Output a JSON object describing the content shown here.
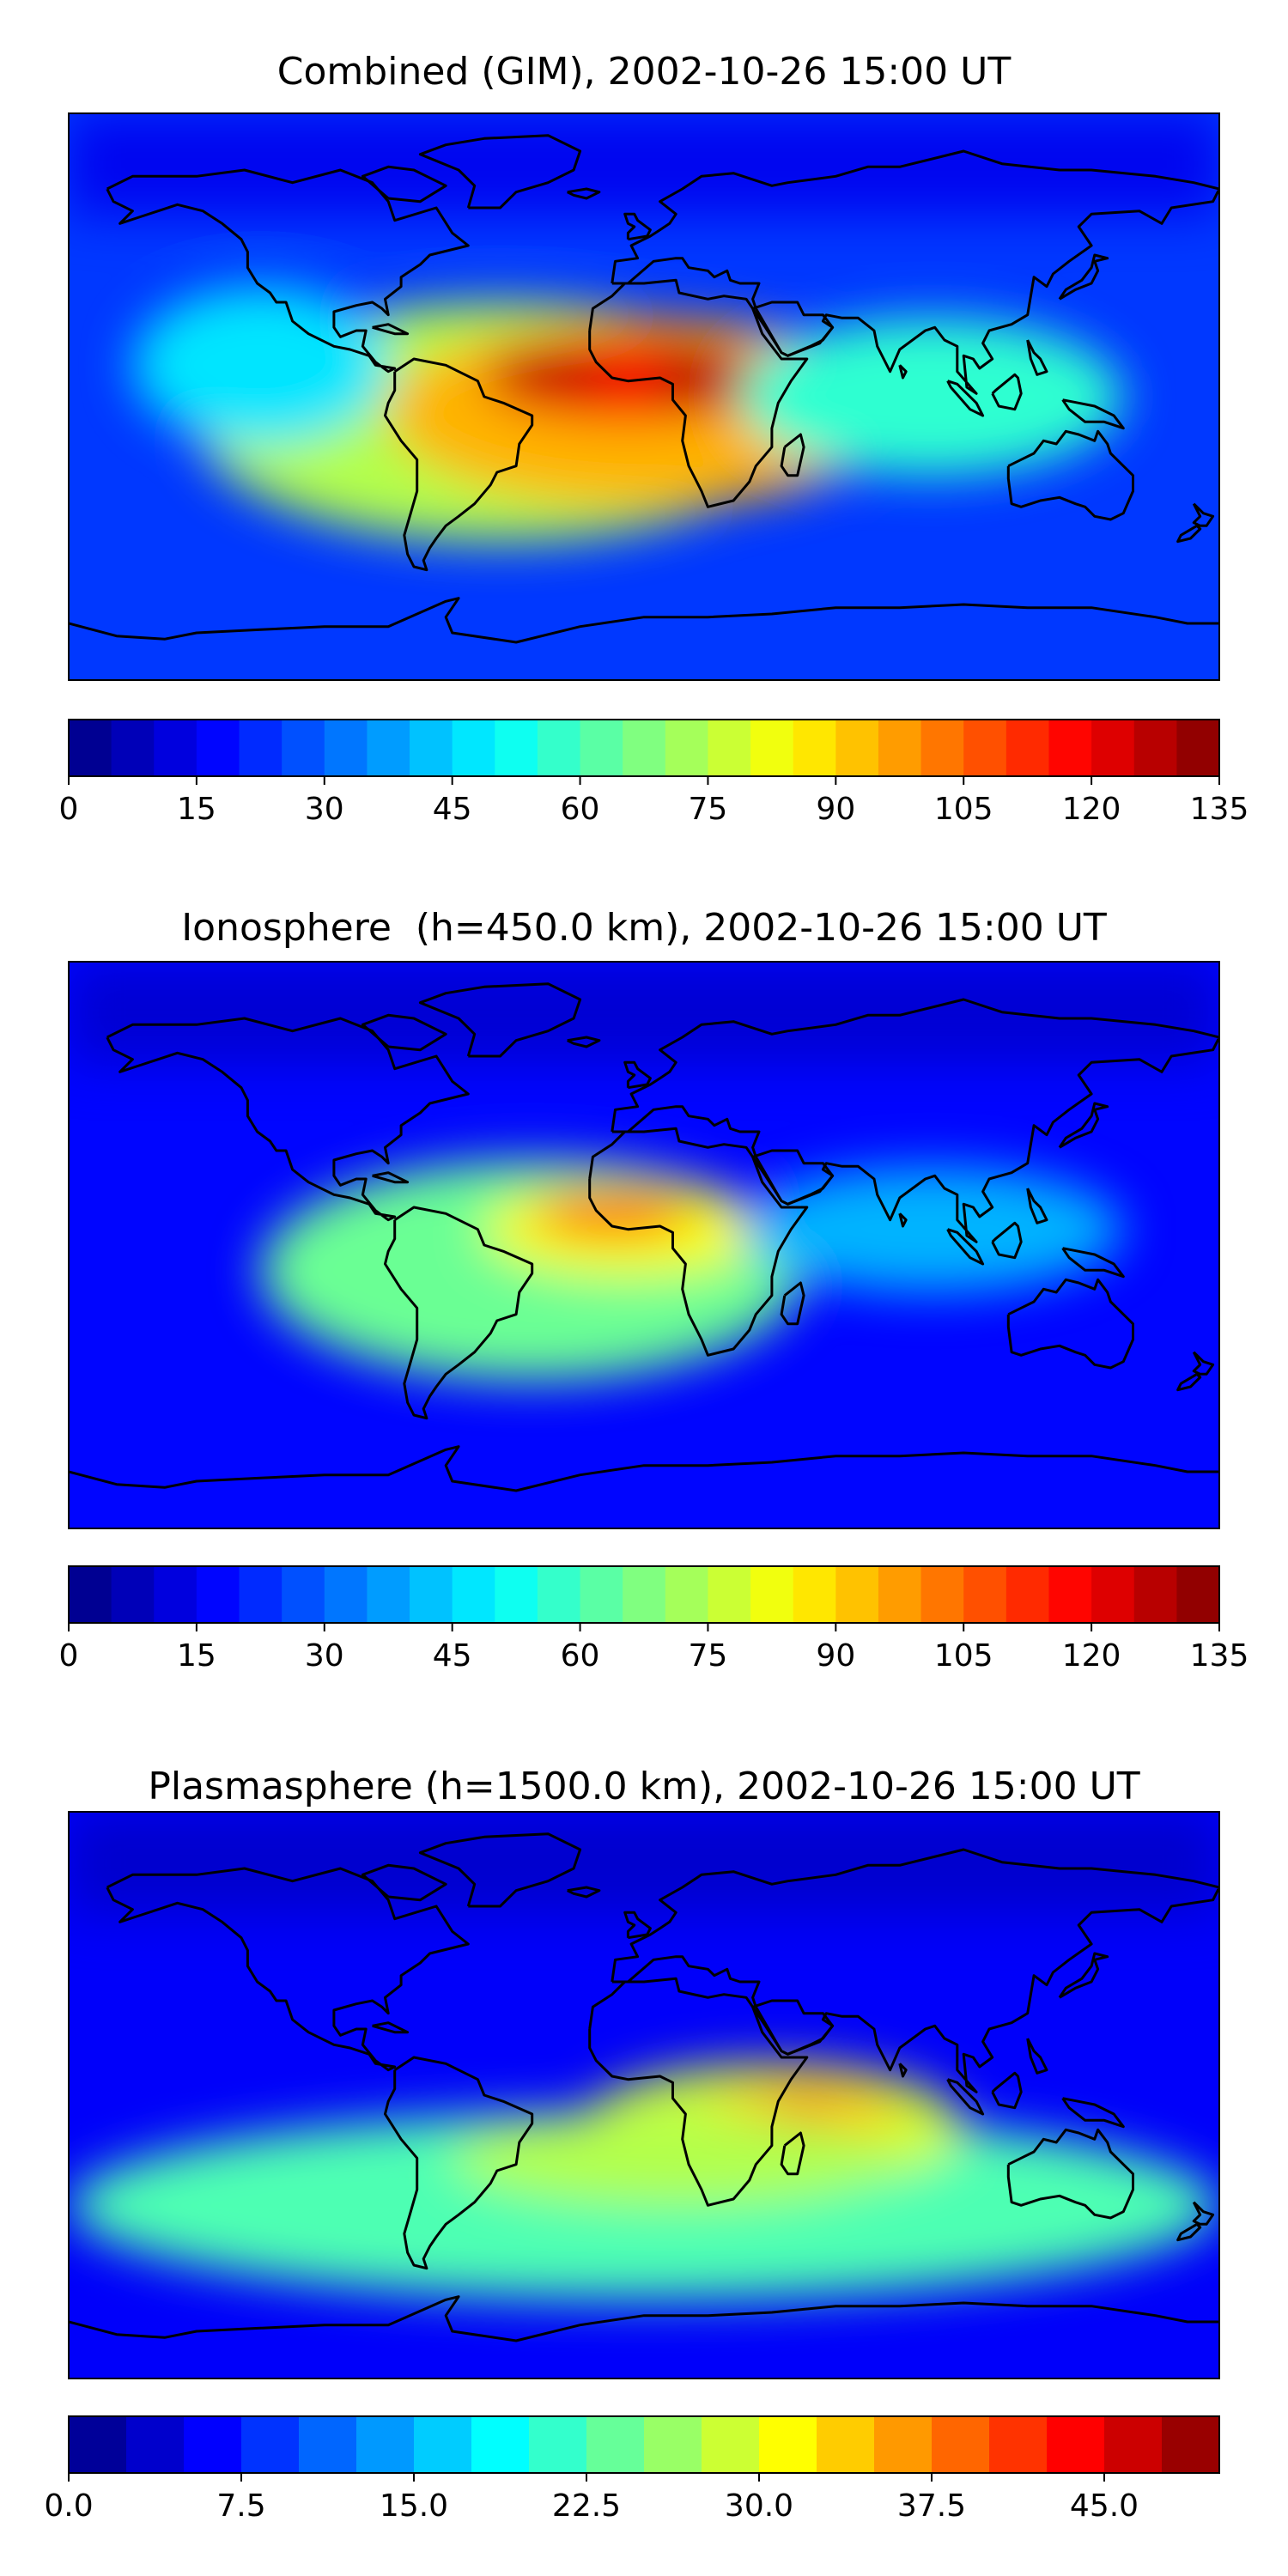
{
  "panels": [
    {
      "title": "Combined (GIM), 2002-10-26 15:00 UT",
      "colorbar": {
        "min": 0,
        "max": 135,
        "levels": 27,
        "ticks": [
          "0",
          "15",
          "30",
          "45",
          "60",
          "75",
          "90",
          "105",
          "120",
          "135"
        ]
      },
      "blobs": [
        {
          "lon": -45,
          "lat": -8,
          "rx": 95,
          "ry": 38,
          "level": 0.55
        },
        {
          "lon": 0,
          "lat": -5,
          "rx": 80,
          "ry": 30,
          "level": 0.7
        },
        {
          "lon": -5,
          "lat": 6,
          "rx": 45,
          "ry": 14,
          "level": 0.88
        },
        {
          "lon": -30,
          "lat": 8,
          "rx": 20,
          "ry": 8,
          "level": 0.94
        },
        {
          "lon": 20,
          "lat": 6,
          "rx": 18,
          "ry": 8,
          "level": 0.96
        },
        {
          "lon": 90,
          "lat": 0,
          "rx": 60,
          "ry": 25,
          "level": 0.42
        },
        {
          "lon": -120,
          "lat": 10,
          "rx": 40,
          "ry": 25,
          "level": 0.35
        }
      ],
      "base_level": 0.18
    },
    {
      "title": "Ionosphere  (h=450.0 km), 2002-10-26 15:00 UT",
      "colorbar": {
        "min": 0,
        "max": 135,
        "levels": 27,
        "ticks": [
          "0",
          "15",
          "30",
          "45",
          "60",
          "75",
          "90",
          "105",
          "120",
          "135"
        ]
      },
      "blobs": [
        {
          "lon": -35,
          "lat": -8,
          "rx": 85,
          "ry": 35,
          "level": 0.48
        },
        {
          "lon": -5,
          "lat": 5,
          "rx": 45,
          "ry": 15,
          "level": 0.62
        },
        {
          "lon": -10,
          "lat": 10,
          "rx": 25,
          "ry": 7,
          "level": 0.8
        },
        {
          "lon": 90,
          "lat": 5,
          "rx": 60,
          "ry": 20,
          "level": 0.3
        }
      ],
      "base_level": 0.13
    },
    {
      "title": "Plasmasphere (h=1500.0 km), 2002-10-26 15:00 UT",
      "colorbar": {
        "min": 0,
        "max": 50,
        "levels": 20,
        "ticks": [
          "0.0",
          "7.5",
          "15.0",
          "22.5",
          "30.0",
          "37.5",
          "45.0"
        ],
        "tick_values": [
          0,
          7.5,
          15,
          22.5,
          30,
          37.5,
          45
        ]
      },
      "blobs": [
        {
          "lon": 0,
          "lat": -35,
          "rx": 180,
          "ry": 30,
          "level": 0.45
        },
        {
          "lon": 40,
          "lat": -10,
          "rx": 60,
          "ry": 20,
          "level": 0.58
        },
        {
          "lon": 50,
          "lat": -5,
          "rx": 30,
          "ry": 10,
          "level": 0.68
        },
        {
          "lon": 50,
          "lat": -4,
          "rx": 12,
          "ry": 4,
          "level": 0.78
        },
        {
          "lon": 10,
          "lat": -20,
          "rx": 70,
          "ry": 15,
          "level": 0.55
        }
      ],
      "base_level": 0.12
    }
  ]
}
